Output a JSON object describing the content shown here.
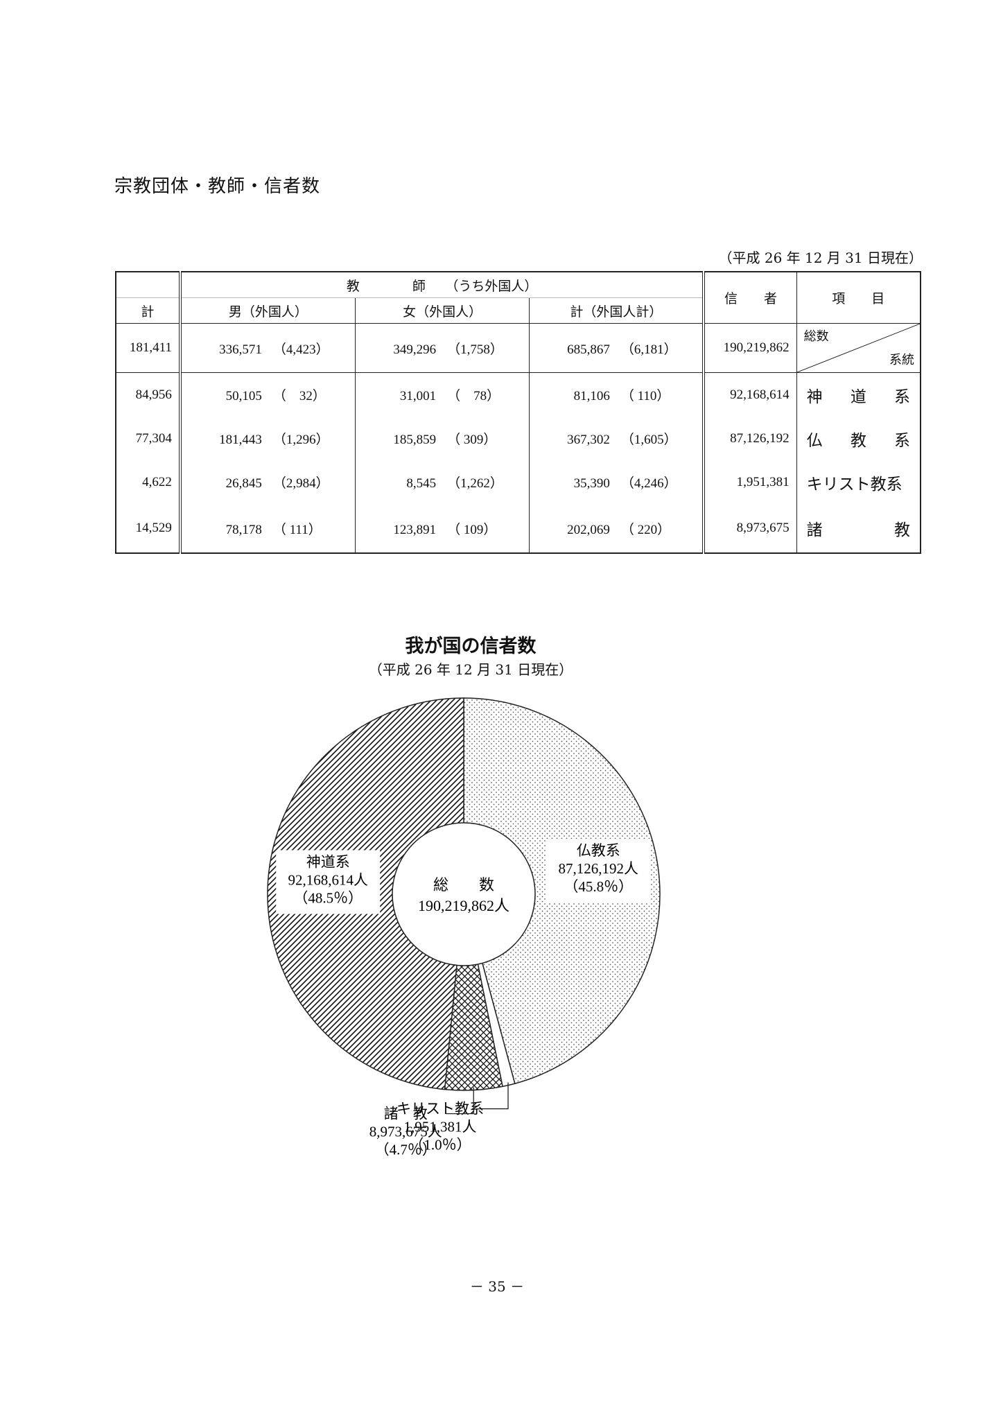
{
  "document": {
    "section_title": "宗教団体・教師・信者数",
    "as_of": "（平成 26 年 12 月 31 日現在）",
    "page_number": "－ 35 －"
  },
  "table": {
    "kyoshi_group_label": "教　　　　師　　（うち外国人）",
    "headers": {
      "kei": "計",
      "male": "男（外国人）",
      "female": "女（外国人）",
      "total": "計（外国人計）",
      "shinja": "信　　者",
      "koumoku": "項　　目"
    },
    "diag_top": "総数",
    "diag_bottom": "系統",
    "rows": [
      {
        "kei": "181,411",
        "male": "336,571",
        "male_f": "（4,423）",
        "female": "349,296",
        "female_f": "（1,758）",
        "total": "685,867",
        "total_f": "（6,181）",
        "shinja": "190,219,862"
      },
      {
        "kei": "84,956",
        "male": "50,105",
        "male_f": "（　32）",
        "female": "31,001",
        "female_f": "（　78）",
        "total": "81,106",
        "total_f": "（ 110）",
        "shinja": "92,168,614",
        "item": [
          "神",
          "道",
          "系"
        ]
      },
      {
        "kei": "77,304",
        "male": "181,443",
        "male_f": "（1,296）",
        "female": "185,859",
        "female_f": "（ 309）",
        "total": "367,302",
        "total_f": "（1,605）",
        "shinja": "87,126,192",
        "item": [
          "仏",
          "教",
          "系"
        ]
      },
      {
        "kei": "4,622",
        "male": "26,845",
        "male_f": "（2,984）",
        "female": "8,545",
        "female_f": "（1,262）",
        "total": "35,390",
        "total_f": "（4,246）",
        "shinja": "1,951,381",
        "item": [
          "キリスト教系"
        ]
      },
      {
        "kei": "14,529",
        "male": "78,178",
        "male_f": "（ 111）",
        "female": "123,891",
        "female_f": "（ 109）",
        "total": "202,069",
        "total_f": "（ 220）",
        "shinja": "8,973,675",
        "item": [
          "諸",
          "教"
        ]
      }
    ]
  },
  "chart_data": {
    "type": "pie",
    "title": "我が国の信者数",
    "subtitle": "（平成 26 年 12 月 31 日現在）",
    "center_label": {
      "line1": "総　　数",
      "line2": "190,219,862人"
    },
    "slices": [
      {
        "label": "仏教系",
        "value": 87126192,
        "value_label": "87,126,192人",
        "percent_label": "（45.8％）",
        "pattern": "dots"
      },
      {
        "label": "キリスト教系",
        "value": 1951381,
        "value_label": "1,951,381人",
        "percent_label": "（1.0％）",
        "pattern": "blank"
      },
      {
        "label": "諸　教",
        "value": 8973675,
        "value_label": "8,973,675人",
        "percent_label": "（4.7％）",
        "pattern": "crosshatch"
      },
      {
        "label": "神道系",
        "value": 92168614,
        "value_label": "92,168,614人",
        "percent_label": "（48.5％）",
        "pattern": "diagonal"
      }
    ]
  }
}
